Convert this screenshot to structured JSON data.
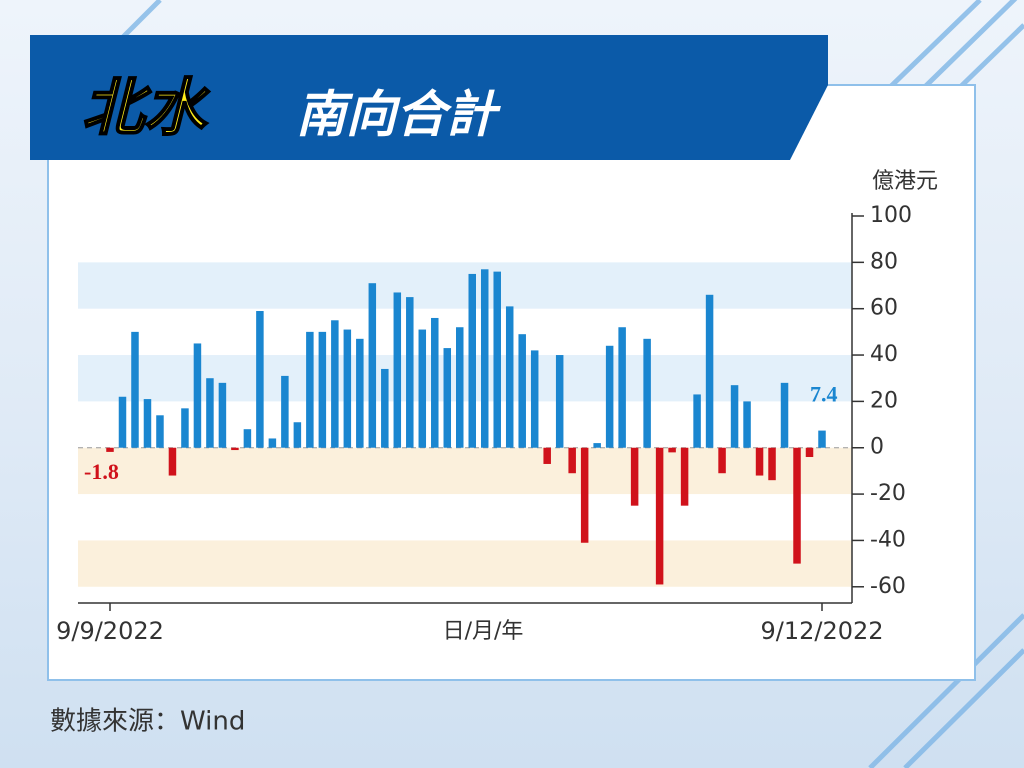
{
  "chart_data": {
    "type": "bar",
    "title_parts": [
      "北水",
      "南向合計"
    ],
    "y_unit": "億港元",
    "x_label": "日/月/年",
    "source": "數據來源：Wind",
    "categories": [
      "9/9/2022",
      null,
      null,
      null,
      null,
      null,
      null,
      null,
      null,
      null,
      null,
      null,
      null,
      null,
      null,
      null,
      null,
      null,
      null,
      null,
      null,
      null,
      null,
      null,
      null,
      null,
      null,
      null,
      null,
      null,
      null,
      null,
      null,
      null,
      null,
      null,
      null,
      null,
      null,
      null,
      null,
      null,
      null,
      null,
      null,
      null,
      null,
      null,
      null,
      null,
      null,
      null,
      null,
      null,
      null,
      null,
      null,
      "9/12/2022"
    ],
    "values": [
      -1.8,
      22,
      50,
      21,
      14,
      -12,
      17,
      45,
      30,
      28,
      -1,
      8,
      59,
      4,
      31,
      11,
      50,
      50,
      55,
      51,
      47,
      71,
      34,
      67,
      65,
      51,
      56,
      43,
      52,
      75,
      77,
      76,
      61,
      49,
      42,
      -7,
      40,
      -11,
      -41,
      2,
      44,
      52,
      -25,
      47,
      -59,
      -2,
      -25,
      23,
      66,
      -11,
      27,
      20,
      -12,
      -14,
      28,
      -50,
      -4,
      7.4
    ],
    "value_labels": [
      "-1.8",
      null,
      null,
      null,
      null,
      null,
      null,
      null,
      null,
      null,
      null,
      null,
      null,
      null,
      null,
      null,
      null,
      null,
      null,
      null,
      null,
      null,
      null,
      null,
      null,
      null,
      null,
      null,
      null,
      null,
      null,
      null,
      null,
      null,
      null,
      null,
      null,
      null,
      null,
      null,
      null,
      null,
      null,
      null,
      null,
      null,
      null,
      null,
      null,
      null,
      null,
      null,
      null,
      null,
      null,
      null,
      null,
      "7.4"
    ],
    "positive_color": "#1a86d0",
    "negative_color": "#d0121b",
    "ylim": [
      -67,
      100
    ],
    "yticks": [
      -60,
      -40,
      -20,
      0,
      20,
      40,
      60,
      80,
      100
    ]
  }
}
